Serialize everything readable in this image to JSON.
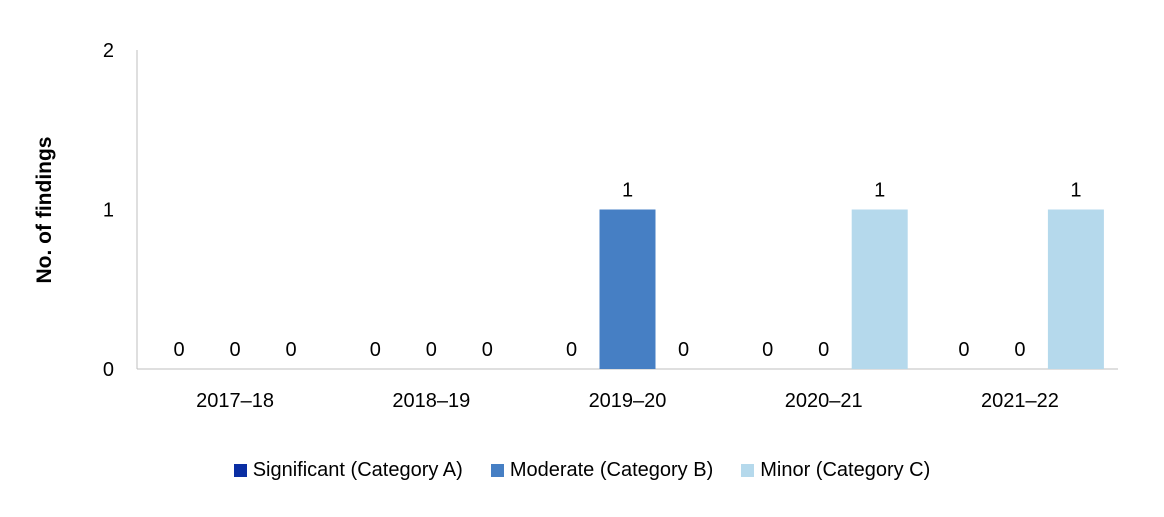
{
  "chart_data": {
    "type": "bar",
    "title": "",
    "xlabel": "",
    "ylabel": "No. of findings",
    "ylim": [
      0,
      2
    ],
    "yticks": [
      "0",
      "1",
      "2"
    ],
    "categories": [
      "2017–18",
      "2018–19",
      "2019–20",
      "2020–21",
      "2021–22"
    ],
    "series": [
      {
        "name": "Significant (Category A)",
        "color": "#0a2ea3",
        "values": [
          0,
          0,
          0,
          0,
          0
        ]
      },
      {
        "name": "Moderate (Category B)",
        "color": "#467fc4",
        "values": [
          0,
          0,
          1,
          0,
          0
        ]
      },
      {
        "name": "Minor (Category C)",
        "color": "#b5d9ec",
        "values": [
          0,
          0,
          0,
          1,
          1
        ]
      }
    ],
    "data_labels": true,
    "grid": false,
    "legend_position": "bottom"
  }
}
